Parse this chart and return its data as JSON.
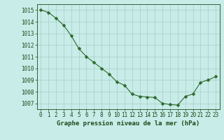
{
  "x": [
    0,
    1,
    2,
    3,
    4,
    5,
    6,
    7,
    8,
    9,
    10,
    11,
    12,
    13,
    14,
    15,
    16,
    17,
    18,
    19,
    20,
    21,
    22,
    23
  ],
  "y": [
    1015.0,
    1014.8,
    1014.3,
    1013.7,
    1012.8,
    1011.7,
    1011.0,
    1010.5,
    1010.0,
    1009.5,
    1008.85,
    1008.55,
    1007.8,
    1007.6,
    1007.55,
    1007.5,
    1007.0,
    1006.9,
    1006.85,
    1007.6,
    1007.8,
    1008.8,
    1009.0,
    1009.3
  ],
  "line_color": "#2d6a2d",
  "marker": "D",
  "marker_size": 2.5,
  "bg_color": "#c8ece8",
  "grid_color": "#a8ccc8",
  "ylim_min": 1006.5,
  "ylim_max": 1015.5,
  "xlim_min": -0.5,
  "xlim_max": 23.5,
  "yticks": [
    1007,
    1008,
    1009,
    1010,
    1011,
    1012,
    1013,
    1014,
    1015
  ],
  "xticks": [
    0,
    1,
    2,
    3,
    4,
    5,
    6,
    7,
    8,
    9,
    10,
    11,
    12,
    13,
    14,
    15,
    16,
    17,
    18,
    19,
    20,
    21,
    22,
    23
  ],
  "xlabel": "Graphe pression niveau de la mer (hPa)",
  "text_color": "#1a4a1a",
  "label_fontsize": 5.5,
  "xlabel_fontsize": 6.5
}
